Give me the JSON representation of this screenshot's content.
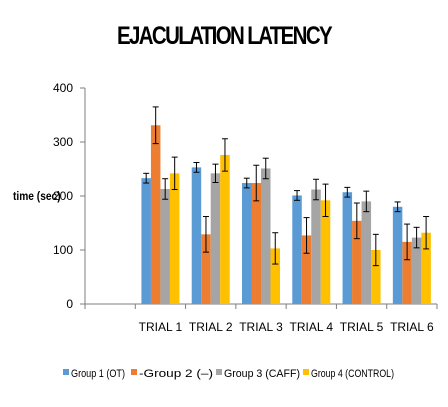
{
  "chart_data": {
    "type": "bar",
    "title": "EJACULATION LATENCY",
    "ylabel": "time (sec)",
    "xlabel": "",
    "ylim": [
      0,
      400
    ],
    "yticks": [
      0,
      100,
      200,
      300,
      400
    ],
    "grid": false,
    "legend_position": "bottom",
    "categories": [
      "",
      "TRIAL 1",
      "TRIAL 2",
      "TRIAL 3",
      "TRIAL 4",
      "TRIAL 5",
      "TRIAL 6"
    ],
    "series": [
      {
        "name": "Group 1 (OT)",
        "color": "#5b9bd5",
        "values": [
          null,
          233,
          253,
          224,
          201,
          207,
          180
        ],
        "errors": [
          null,
          9,
          9,
          9,
          9,
          9,
          9
        ]
      },
      {
        "name": "-Group 2 (–)",
        "color": "#ed7d31",
        "values": [
          null,
          331,
          129,
          224,
          127,
          154,
          115
        ],
        "errors": [
          null,
          34,
          33,
          33,
          33,
          33,
          33
        ]
      },
      {
        "name": "Group 3 (CAFF)",
        "color": "#a5a5a5",
        "values": [
          null,
          213,
          242,
          251,
          212,
          190,
          123
        ],
        "errors": [
          null,
          19,
          17,
          19,
          19,
          19,
          19
        ]
      },
      {
        "name": "Group 4 (CONTROL)",
        "color": "#ffc000",
        "values": [
          null,
          242,
          276,
          103,
          192,
          100,
          132
        ],
        "errors": [
          null,
          30,
          30,
          29,
          30,
          29,
          30
        ]
      }
    ]
  }
}
